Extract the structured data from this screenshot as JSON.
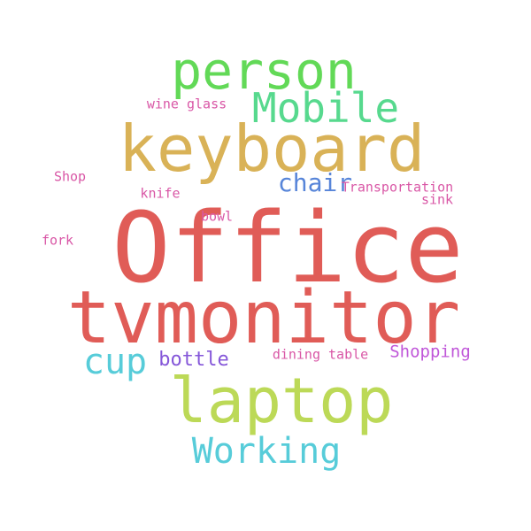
{
  "words": [
    {
      "key": "office",
      "text": "Office",
      "color": "#e05c57"
    },
    {
      "key": "tvmonitor",
      "text": "tvmonitor",
      "color": "#e05c57"
    },
    {
      "key": "keyboard",
      "text": "keyboard",
      "color": "#d9b257"
    },
    {
      "key": "laptop",
      "text": "laptop",
      "color": "#bcd957"
    },
    {
      "key": "person",
      "text": "person",
      "color": "#62d957"
    },
    {
      "key": "mobile",
      "text": "Mobile",
      "color": "#57d98e"
    },
    {
      "key": "working",
      "text": "Working",
      "color": "#57ccd9"
    },
    {
      "key": "cup",
      "text": "cup",
      "color": "#57ccd9"
    },
    {
      "key": "chair",
      "text": "chair",
      "color": "#5785d9"
    },
    {
      "key": "bottle",
      "text": "bottle",
      "color": "#8557d9"
    },
    {
      "key": "shopping",
      "text": "Shopping",
      "color": "#c057d9"
    },
    {
      "key": "dining_table",
      "text": "dining table",
      "color": "#d957a6"
    },
    {
      "key": "transportation",
      "text": "Transportation",
      "color": "#d957a6"
    },
    {
      "key": "sink",
      "text": "sink",
      "color": "#d957a6"
    },
    {
      "key": "bowl",
      "text": "bowl",
      "color": "#d957a6"
    },
    {
      "key": "knife",
      "text": "knife",
      "color": "#d957a6"
    },
    {
      "key": "wine_glass",
      "text": "wine glass",
      "color": "#d957a6"
    },
    {
      "key": "shop",
      "text": "Shop",
      "color": "#d957a6"
    },
    {
      "key": "fork",
      "text": "fork",
      "color": "#d957a6"
    }
  ]
}
